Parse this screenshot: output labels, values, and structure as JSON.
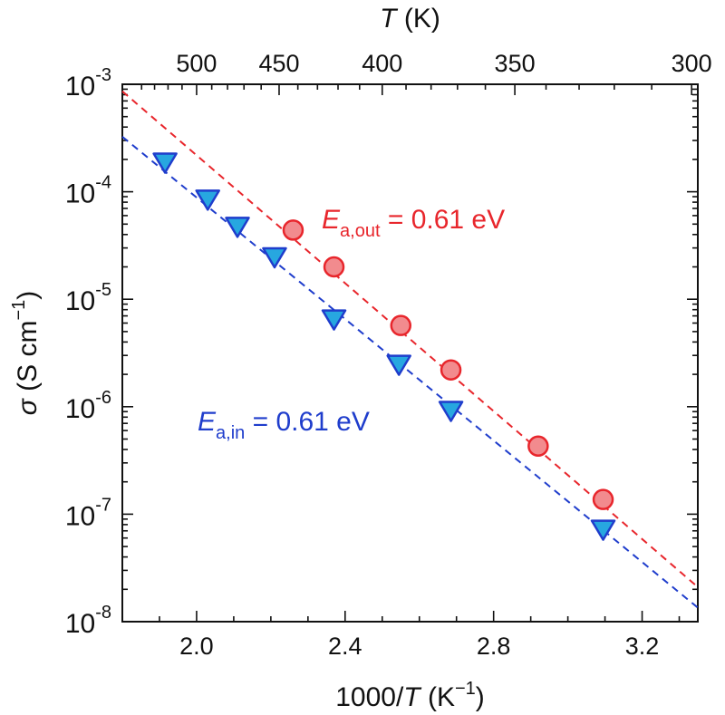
{
  "chart_data": {
    "type": "scatter",
    "x_scale": "linear",
    "y_scale": "log",
    "xlabel": {
      "main": "1000/",
      "italic": "T",
      "unit": " (K",
      "sup": "−1",
      "close": ")"
    },
    "ylabel": {
      "symbol": "σ",
      "unit": " (S cm",
      "sup": "−1",
      "close": ")"
    },
    "top_axis": {
      "label": {
        "italic": "T",
        "unit": " (K)"
      },
      "ticks": [
        {
          "label": "500",
          "T": 500
        },
        {
          "label": "450",
          "T": 450
        },
        {
          "label": "400",
          "T": 400
        },
        {
          "label": "350",
          "T": 350
        },
        {
          "label": "300",
          "T": 300
        }
      ]
    },
    "xlim": [
      1.8,
      3.35
    ],
    "ylim": [
      1e-08,
      0.001
    ],
    "xticks": [
      {
        "value": 2.0,
        "label": "2.0"
      },
      {
        "value": 2.4,
        "label": "2.4"
      },
      {
        "value": 2.8,
        "label": "2.8"
      },
      {
        "value": 3.2,
        "label": "3.2"
      }
    ],
    "yticks": [
      {
        "value": 0.001,
        "base": "10",
        "exp": "-3"
      },
      {
        "value": 0.0001,
        "base": "10",
        "exp": "-4"
      },
      {
        "value": 1e-05,
        "base": "10",
        "exp": "-5"
      },
      {
        "value": 1e-06,
        "base": "10",
        "exp": "-6"
      },
      {
        "value": 1e-07,
        "base": "10",
        "exp": "-7"
      },
      {
        "value": 1e-08,
        "base": "10",
        "exp": "-8"
      }
    ],
    "series": [
      {
        "key": "out",
        "marker": "circle",
        "color": "#e8262c",
        "fill": "#f28b8e",
        "points": [
          {
            "x": 2.26,
            "y": 4.4e-05
          },
          {
            "x": 2.37,
            "y": 2e-05
          },
          {
            "x": 2.55,
            "y": 5.7e-06
          },
          {
            "x": 2.685,
            "y": 2.2e-06
          },
          {
            "x": 2.92,
            "y": 4.3e-07
          },
          {
            "x": 3.095,
            "y": 1.37e-07
          }
        ],
        "fit": {
          "x": [
            1.8,
            3.35
          ],
          "y": [
            0.00086,
            2.1e-08
          ]
        },
        "annotation": {
          "italic": "E",
          "sub": "a,out",
          "text": " = 0.61 eV"
        }
      },
      {
        "key": "in",
        "marker": "triangle-down",
        "color": "#1f3dcc",
        "fill": "#27a7e0",
        "points": [
          {
            "x": 1.915,
            "y": 0.00019
          },
          {
            "x": 2.03,
            "y": 8.6e-05
          },
          {
            "x": 2.11,
            "y": 4.8e-05
          },
          {
            "x": 2.21,
            "y": 2.5e-05
          },
          {
            "x": 2.37,
            "y": 6.6e-06
          },
          {
            "x": 2.545,
            "y": 2.5e-06
          },
          {
            "x": 2.685,
            "y": 9.3e-07
          },
          {
            "x": 3.095,
            "y": 7.3e-08
          }
        ],
        "fit": {
          "x": [
            1.8,
            3.35
          ],
          "y": [
            0.000325,
            1.35e-08
          ]
        },
        "annotation": {
          "italic": "E",
          "sub": "a,in",
          "text": " = 0.61 eV"
        }
      }
    ]
  }
}
